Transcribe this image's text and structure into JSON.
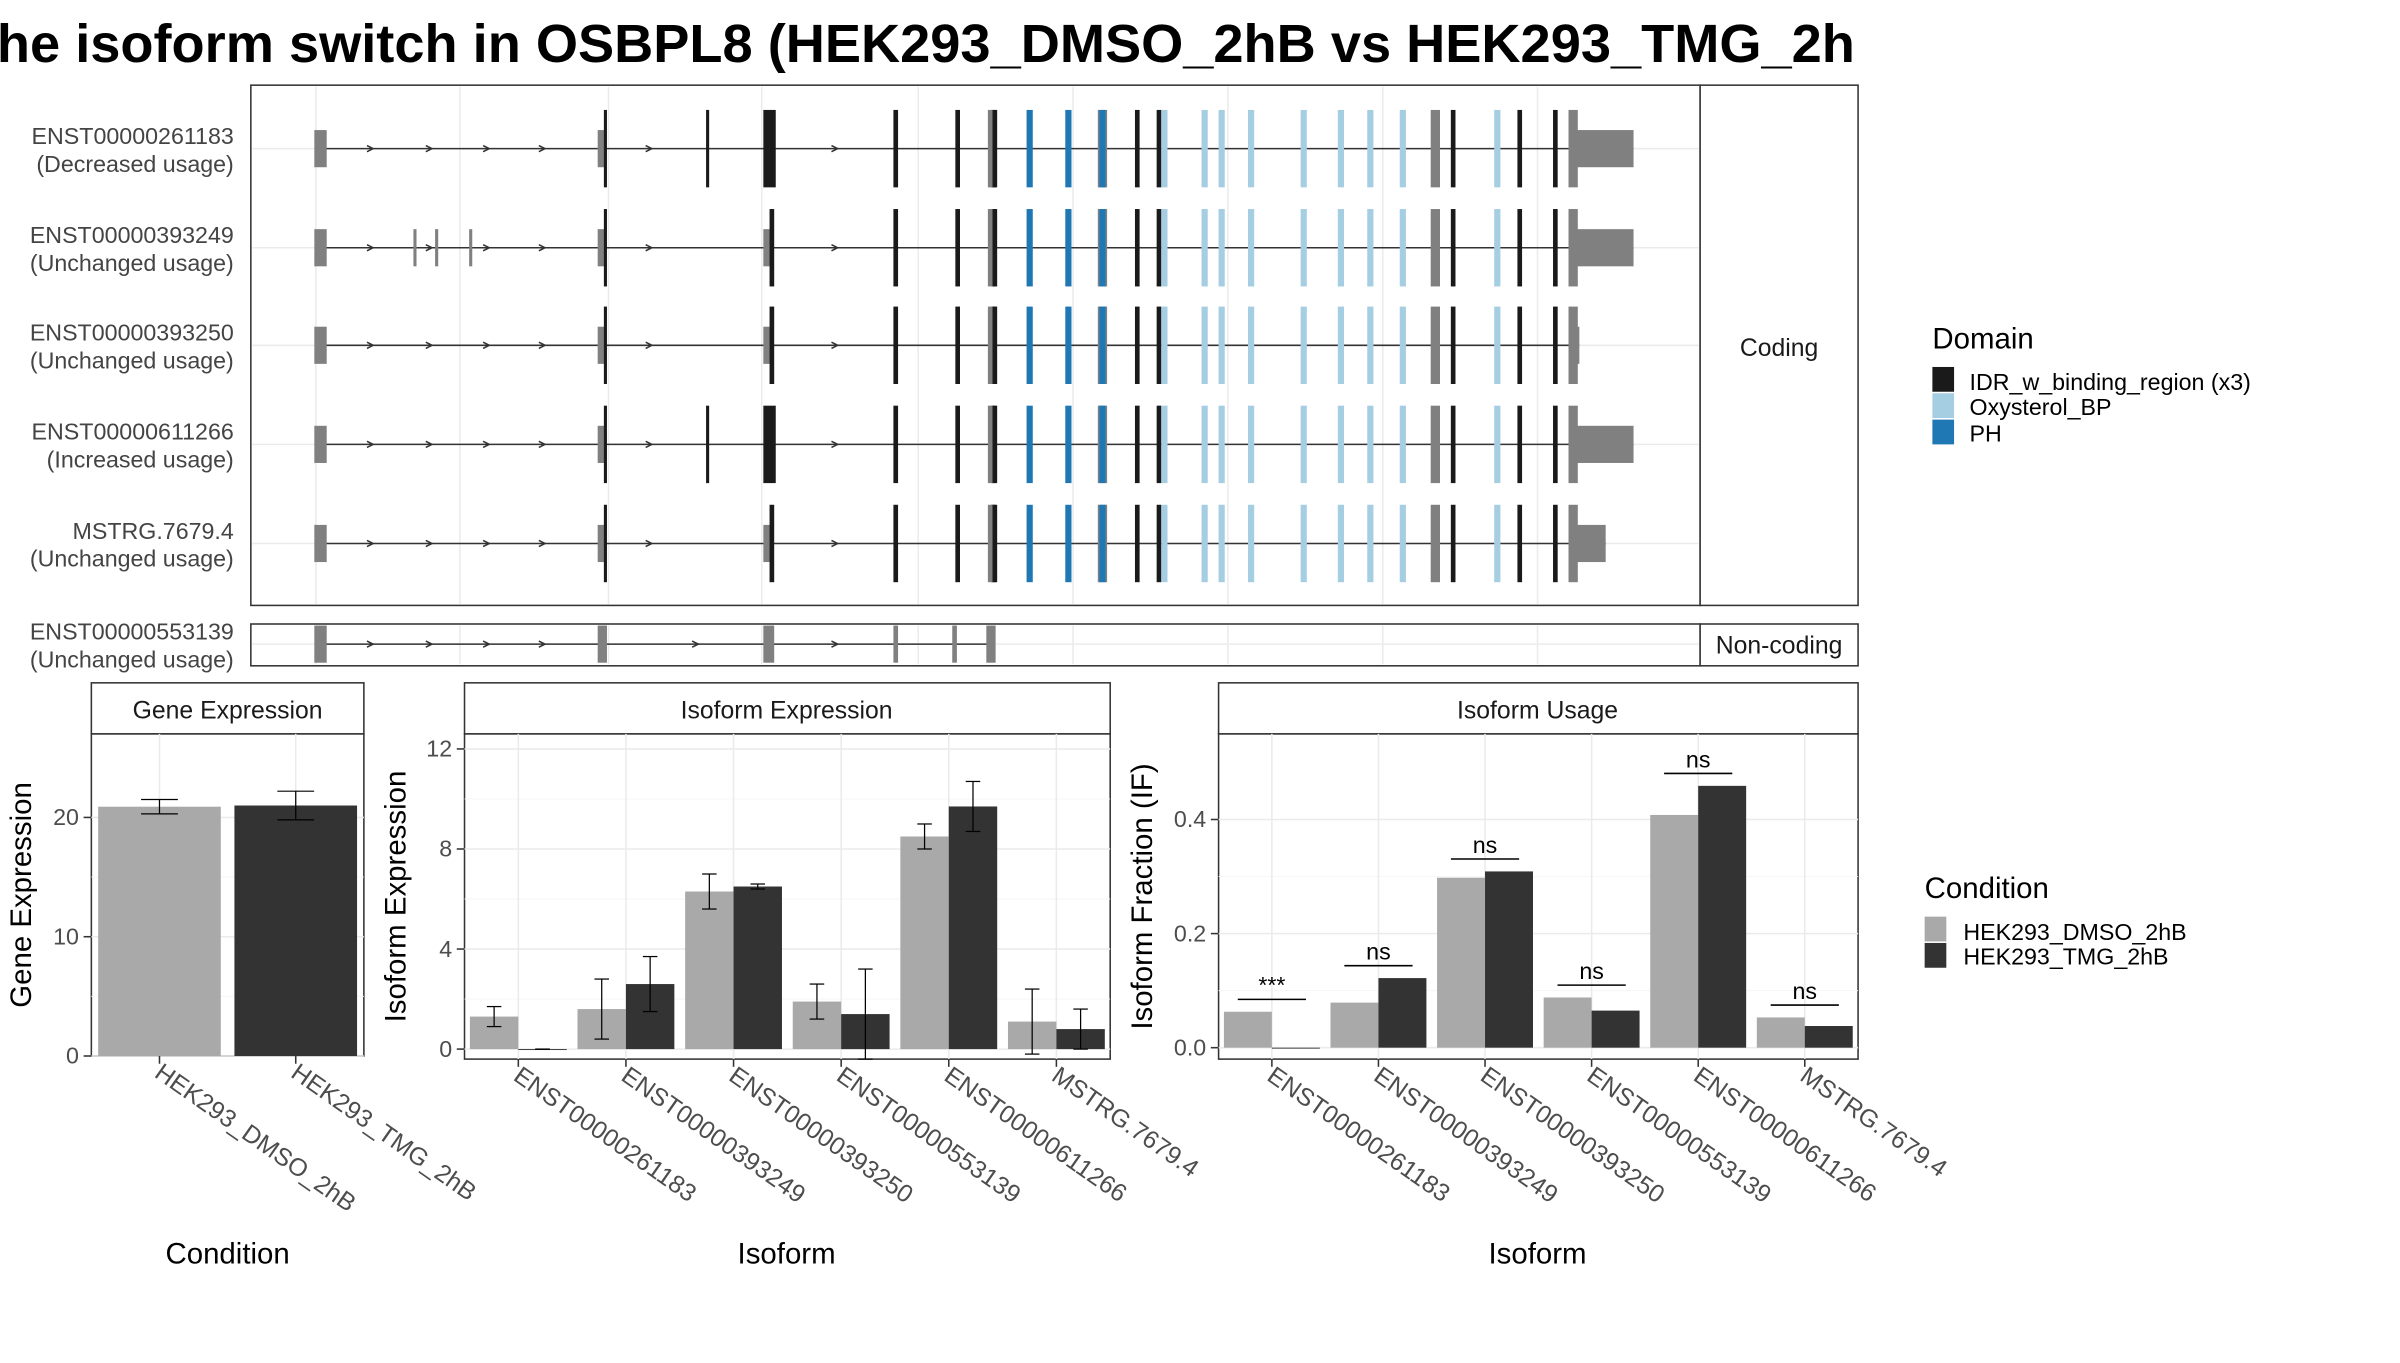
{
  "title": "he isoform switch in OSBPL8 (HEK293_DMSO_2hB vs HEK293_TMG_2h",
  "colors": {
    "idr": "#1a1a1a",
    "oxysterol": "#a6cee3",
    "ph": "#1f78b4",
    "exon": "#808080",
    "dmso": "#a9a9a9",
    "tmg": "#333333"
  },
  "structure": {
    "facet_coding": "Coding",
    "facet_noncoding": "Non-coding",
    "transcripts": [
      {
        "id": "ENST00000261183",
        "usage": "(Decreased usage)",
        "type": "coding"
      },
      {
        "id": "ENST00000393249",
        "usage": "(Unchanged usage)",
        "type": "coding"
      },
      {
        "id": "ENST00000393250",
        "usage": "(Unchanged usage)",
        "type": "coding"
      },
      {
        "id": "ENST00000611266",
        "usage": "(Increased usage)",
        "type": "coding"
      },
      {
        "id": "MSTRG.7679.4",
        "usage": "(Unchanged usage)",
        "type": "coding"
      },
      {
        "id": "ENST00000553139",
        "usage": "(Unchanged usage)",
        "type": "non-coding"
      }
    ]
  },
  "legends": {
    "domain_title": "Domain",
    "domain_items": [
      {
        "label": "IDR_w_binding_region (x3)",
        "color": "#1a1a1a"
      },
      {
        "label": "Oxysterol_BP",
        "color": "#a6cee3"
      },
      {
        "label": "PH",
        "color": "#1f78b4"
      }
    ],
    "condition_title": "Condition",
    "condition_items": [
      {
        "label": "HEK293_DMSO_2hB",
        "color": "#a9a9a9"
      },
      {
        "label": "HEK293_TMG_2hB",
        "color": "#333333"
      }
    ]
  },
  "chart_data": [
    {
      "type": "bar",
      "title": "Gene Expression",
      "xlabel": "Condition",
      "ylabel": "Gene Expression",
      "categories": [
        "HEK293_DMSO_2hB",
        "HEK293_TMG_2hB"
      ],
      "values": [
        20.9,
        21.0
      ],
      "errors": [
        0.6,
        1.2
      ],
      "ylim": [
        0,
        27
      ],
      "yticks": [
        0,
        10,
        20
      ]
    },
    {
      "type": "bar",
      "title": "Isoform Expression",
      "xlabel": "Isoform",
      "ylabel": "Isoform Expression",
      "categories": [
        "ENST00000261183",
        "ENST00000393249",
        "ENST00000393250",
        "ENST00000553139",
        "ENST00000611266",
        "MSTRG.7679.4"
      ],
      "series": [
        {
          "name": "HEK293_DMSO_2hB",
          "values": [
            1.3,
            1.6,
            6.3,
            1.9,
            8.5,
            1.1
          ],
          "errors": [
            0.4,
            1.2,
            0.7,
            0.7,
            0.5,
            1.3
          ]
        },
        {
          "name": "HEK293_TMG_2hB",
          "values": [
            0.0,
            2.6,
            6.5,
            1.4,
            9.7,
            0.8
          ],
          "errors": [
            0.0,
            1.1,
            0.1,
            1.8,
            1.0,
            0.8
          ]
        }
      ],
      "ylim": [
        -0.4,
        12.6
      ],
      "yticks": [
        0,
        4,
        8,
        12
      ]
    },
    {
      "type": "bar",
      "title": "Isoform Usage",
      "xlabel": "Isoform",
      "ylabel": "Isoform Fraction (IF)",
      "categories": [
        "ENST00000261183",
        "ENST00000393249",
        "ENST00000393250",
        "ENST00000553139",
        "ENST00000611266",
        "MSTRG.7679.4"
      ],
      "series": [
        {
          "name": "HEK293_DMSO_2hB",
          "values": [
            0.063,
            0.079,
            0.298,
            0.088,
            0.408,
            0.053
          ]
        },
        {
          "name": "HEK293_TMG_2hB",
          "values": [
            0.0,
            0.122,
            0.309,
            0.065,
            0.459,
            0.038
          ]
        }
      ],
      "significance": [
        "***",
        "ns",
        "ns",
        "ns",
        "ns",
        "ns"
      ],
      "ylim": [
        -0.02,
        0.55
      ],
      "yticks": [
        0.0,
        0.2,
        0.4
      ],
      "ytick_labels": [
        "0.0",
        "0.2",
        "0.4"
      ]
    }
  ]
}
